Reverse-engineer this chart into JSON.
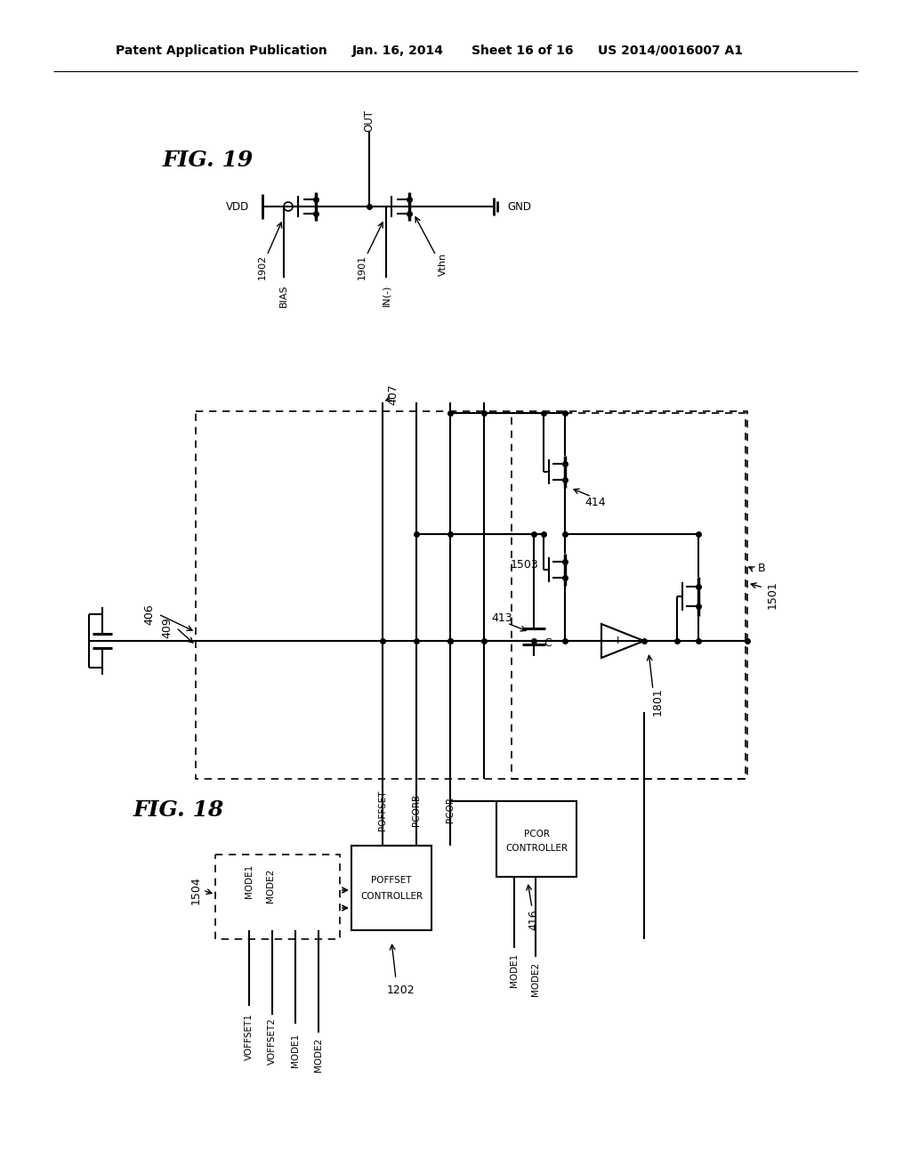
{
  "bg": "#ffffff",
  "lc": "#000000",
  "header_left": "Patent Application Publication",
  "header_mid": "Jan. 16, 2014  Sheet 16 of 16",
  "header_right": "US 2014/0016007 A1"
}
